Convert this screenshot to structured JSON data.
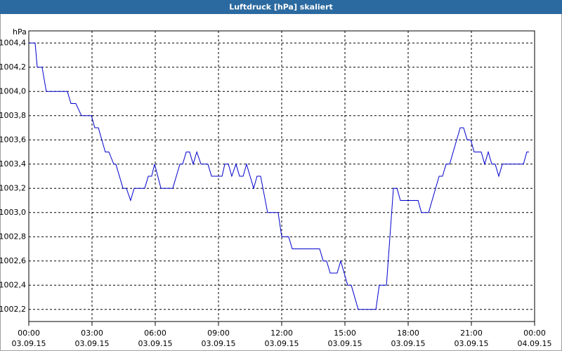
{
  "chart_data": {
    "type": "line",
    "title": "Luftdruck [hPa] skaliert",
    "y_label": "hPa",
    "xlim": [
      0,
      24
    ],
    "xticks": [
      {
        "value": 0,
        "label": [
          "00:00",
          "03.09.15"
        ]
      },
      {
        "value": 3,
        "label": [
          "03:00",
          "03.09.15"
        ]
      },
      {
        "value": 6,
        "label": [
          "06:00",
          "03.09.15"
        ]
      },
      {
        "value": 9,
        "label": [
          "09:00",
          "03.09.15"
        ]
      },
      {
        "value": 12,
        "label": [
          "12:00",
          "03.09.15"
        ]
      },
      {
        "value": 15,
        "label": [
          "15:00",
          "03.09.15"
        ]
      },
      {
        "value": 18,
        "label": [
          "18:00",
          "03.09.15"
        ]
      },
      {
        "value": 21,
        "label": [
          "21:00",
          "03.09.15"
        ]
      },
      {
        "value": 24,
        "label": [
          "00:00",
          "04.09.15"
        ]
      }
    ],
    "ylim": [
      1002.1,
      1004.5
    ],
    "yticks": [
      {
        "value": 1002.2,
        "label": "1002,2"
      },
      {
        "value": 1002.4,
        "label": "1002,4"
      },
      {
        "value": 1002.6,
        "label": "1002,6"
      },
      {
        "value": 1002.8,
        "label": "1002,8"
      },
      {
        "value": 1003.0,
        "label": "1003,0"
      },
      {
        "value": 1003.2,
        "label": "1003,2"
      },
      {
        "value": 1003.4,
        "label": "1003,4"
      },
      {
        "value": 1003.6,
        "label": "1003,6"
      },
      {
        "value": 1003.8,
        "label": "1003,8"
      },
      {
        "value": 1004.0,
        "label": "1004,0"
      },
      {
        "value": 1004.2,
        "label": "1004,2"
      },
      {
        "value": 1004.4,
        "label": "1004,4"
      }
    ],
    "grid": true,
    "series": [
      {
        "color": "#0000cc",
        "x": [
          0,
          0.3,
          0.4,
          0.63,
          0.83,
          1.83,
          2,
          2.23,
          2.5,
          2.97,
          3.13,
          3.3,
          3.63,
          3.8,
          4.03,
          4.13,
          4.47,
          4.63,
          4.83,
          5,
          5.5,
          5.67,
          5.83,
          5.97,
          6.27,
          6.83,
          7.17,
          7.3,
          7.47,
          7.63,
          7.8,
          7.97,
          8.17,
          8.5,
          8.67,
          9.17,
          9.3,
          9.47,
          9.63,
          9.83,
          10,
          10.17,
          10.33,
          10.67,
          10.83,
          11,
          11.33,
          11.83,
          12,
          12.33,
          12.5,
          13.8,
          13.97,
          14.13,
          14.3,
          14.63,
          14.8,
          15.13,
          15.3,
          15.63,
          16.47,
          16.63,
          16.97,
          17.3,
          17.47,
          17.63,
          18.47,
          18.63,
          18.97,
          19.47,
          19.63,
          19.8,
          19.97,
          20.47,
          20.63,
          20.8,
          20.97,
          21.13,
          21.47,
          21.63,
          21.8,
          21.97,
          22.13,
          22.3,
          22.47,
          23.47,
          23.63,
          23.73
        ],
        "values": [
          1004.4,
          1004.4,
          1004.2,
          1004.2,
          1004.0,
          1004.0,
          1003.9,
          1003.9,
          1003.8,
          1003.8,
          1003.7,
          1003.7,
          1003.5,
          1003.5,
          1003.4,
          1003.4,
          1003.2,
          1003.2,
          1003.1,
          1003.2,
          1003.2,
          1003.3,
          1003.3,
          1003.4,
          1003.2,
          1003.2,
          1003.4,
          1003.4,
          1003.5,
          1003.5,
          1003.4,
          1003.5,
          1003.4,
          1003.4,
          1003.3,
          1003.3,
          1003.4,
          1003.4,
          1003.3,
          1003.4,
          1003.3,
          1003.3,
          1003.4,
          1003.2,
          1003.3,
          1003.3,
          1003.0,
          1003.0,
          1002.8,
          1002.8,
          1002.7,
          1002.7,
          1002.6,
          1002.6,
          1002.5,
          1002.5,
          1002.6,
          1002.4,
          1002.4,
          1002.2,
          1002.2,
          1002.4,
          1002.4,
          1003.2,
          1003.2,
          1003.1,
          1003.1,
          1003.0,
          1003.0,
          1003.3,
          1003.3,
          1003.4,
          1003.4,
          1003.7,
          1003.7,
          1003.6,
          1003.6,
          1003.5,
          1003.5,
          1003.4,
          1003.5,
          1003.4,
          1003.4,
          1003.3,
          1003.4,
          1003.4,
          1003.5,
          1003.5
        ]
      }
    ]
  }
}
